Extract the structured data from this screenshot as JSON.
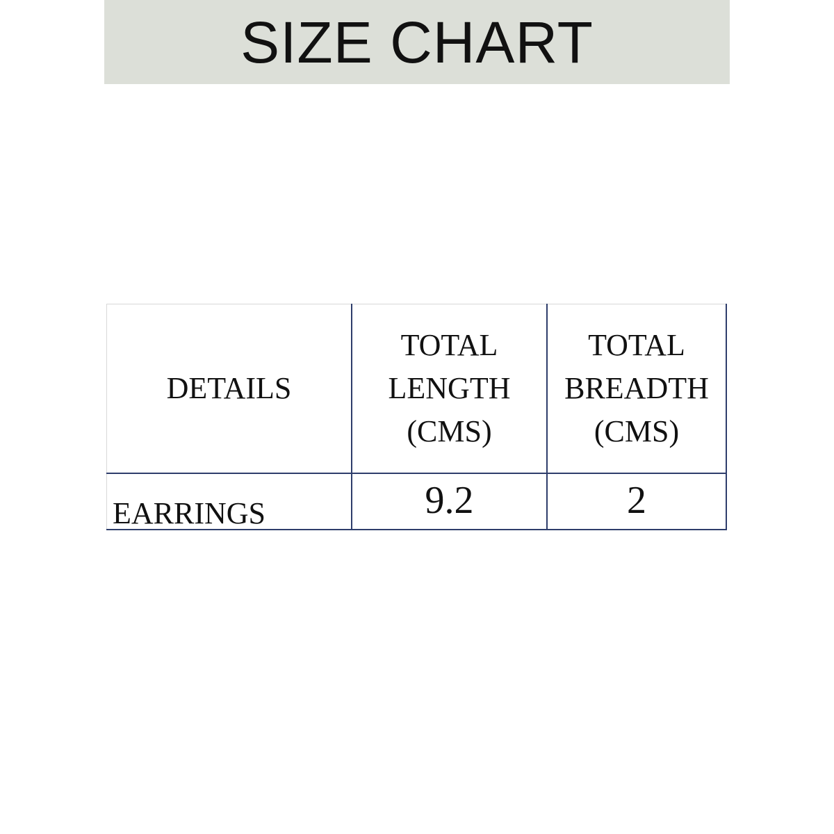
{
  "title": "SIZE CHART",
  "table": {
    "headers": [
      "DETAILS",
      "TOTAL LENGTH (CMS)",
      "TOTAL BREADTH (CMS)"
    ],
    "header_lines": [
      [
        "DETAILS"
      ],
      [
        "TOTAL",
        "LENGTH",
        "(CMS)"
      ],
      [
        "TOTAL",
        "BREADTH",
        "(CMS)"
      ]
    ],
    "rows": [
      [
        "EARRINGS",
        "9.2",
        "2"
      ]
    ]
  },
  "colors": {
    "banner": "#dcdfd8",
    "border": "#2e3d6b"
  }
}
